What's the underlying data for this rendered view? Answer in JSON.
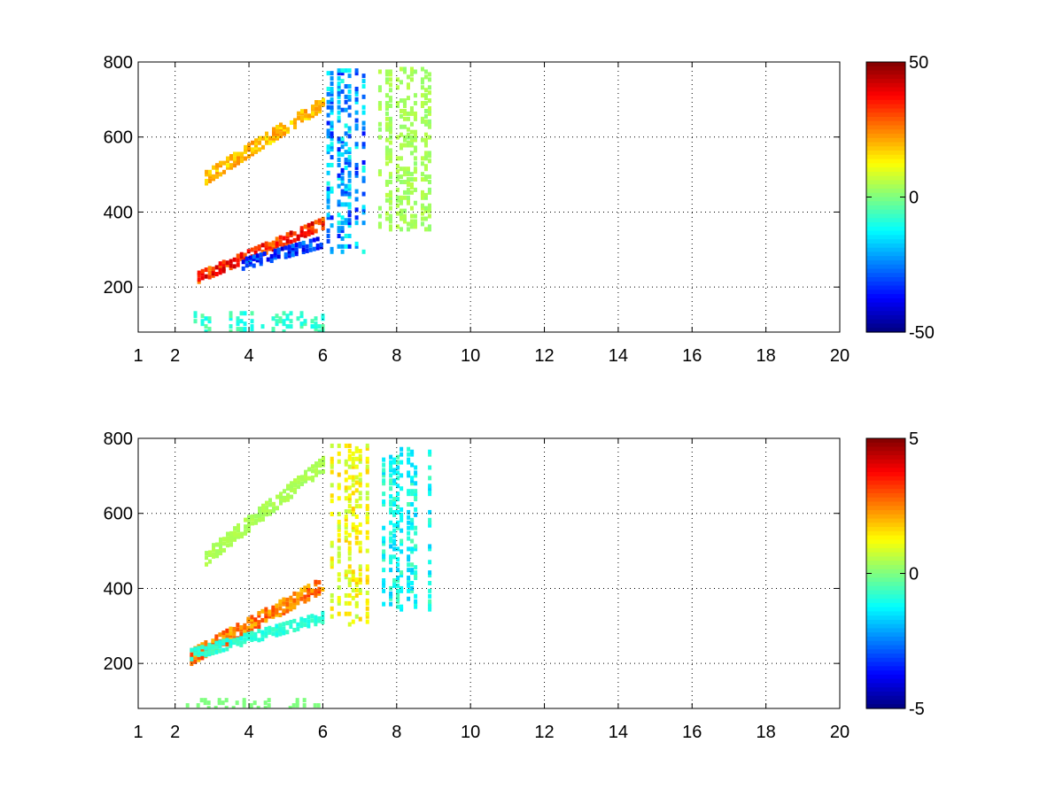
{
  "chart_data": [
    {
      "type": "heatmap",
      "title": "",
      "xlabel": "",
      "ylabel": "",
      "xlim": [
        1,
        20
      ],
      "ylim": [
        80,
        800
      ],
      "x_ticks": [
        1,
        2,
        4,
        6,
        8,
        10,
        12,
        14,
        16,
        18,
        20
      ],
      "y_ticks": [
        200,
        400,
        600,
        800
      ],
      "grid": true,
      "colormap": "jet",
      "colorbar": {
        "range": [
          -50,
          50
        ],
        "ticks": [
          50,
          0,
          -50
        ]
      },
      "features": [
        {
          "shape": "band",
          "x": [
            2.6,
            6.0
          ],
          "y": [
            235,
            380
          ],
          "value": 40,
          "width": 30
        },
        {
          "shape": "band",
          "x": [
            2.8,
            6.0
          ],
          "y": [
            500,
            700
          ],
          "value": 22,
          "width": 35
        },
        {
          "shape": "band",
          "x": [
            3.8,
            6.0
          ],
          "y": [
            270,
            330
          ],
          "value": -38,
          "width": 30
        },
        {
          "shape": "block",
          "x": [
            6.1,
            7.2
          ],
          "y": [
            300,
            790
          ],
          "value": -30
        },
        {
          "shape": "block",
          "x": [
            7.5,
            9.0
          ],
          "y": [
            360,
            790
          ],
          "value": 5
        },
        {
          "shape": "block",
          "x": [
            2.5,
            6.0
          ],
          "y": [
            80,
            140
          ],
          "value": -10
        }
      ]
    },
    {
      "type": "heatmap",
      "title": "",
      "xlabel": "",
      "ylabel": "",
      "xlim": [
        1,
        20
      ],
      "ylim": [
        80,
        800
      ],
      "x_ticks": [
        1,
        2,
        4,
        6,
        8,
        10,
        12,
        14,
        16,
        18,
        20
      ],
      "y_ticks": [
        200,
        400,
        600,
        800
      ],
      "grid": true,
      "colormap": "jet",
      "colorbar": {
        "range": [
          -5,
          5
        ],
        "ticks": [
          5,
          0,
          -5
        ]
      },
      "features": [
        {
          "shape": "band",
          "x": [
            2.4,
            6.0
          ],
          "y": [
            225,
            420
          ],
          "value": 3,
          "width": 40
        },
        {
          "shape": "band",
          "x": [
            2.4,
            6.0
          ],
          "y": [
            230,
            330
          ],
          "value": -1,
          "width": 25
        },
        {
          "shape": "band",
          "x": [
            2.8,
            6.0
          ],
          "y": [
            490,
            740
          ],
          "value": 0.5,
          "width": 40
        },
        {
          "shape": "block",
          "x": [
            6.2,
            7.2
          ],
          "y": [
            310,
            790
          ],
          "value": 1.5
        },
        {
          "shape": "block",
          "x": [
            7.6,
            9.0
          ],
          "y": [
            350,
            780
          ],
          "value": -1.5
        },
        {
          "shape": "block",
          "x": [
            2.0,
            6.0
          ],
          "y": [
            80,
            115
          ],
          "value": 0
        }
      ]
    }
  ]
}
